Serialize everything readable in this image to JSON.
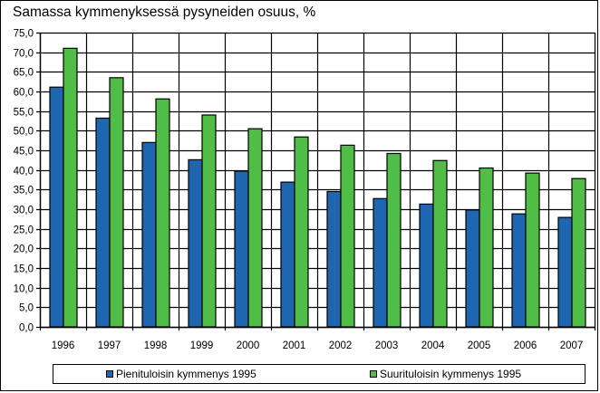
{
  "chart_data": {
    "type": "bar",
    "title": "Samassa kymmenyksessä pysyneiden osuus, %",
    "xlabel": "",
    "ylabel": "",
    "categories": [
      "1996",
      "1997",
      "1998",
      "1999",
      "2000",
      "2001",
      "2002",
      "2003",
      "2004",
      "2005",
      "2006",
      "2007"
    ],
    "series": [
      {
        "name": "Pienituloisin kymmenys 1995",
        "color": "#1F66B0",
        "values": [
          61.1,
          53.2,
          47.0,
          42.6,
          39.7,
          36.9,
          34.5,
          32.7,
          31.3,
          29.8,
          28.8,
          27.9
        ]
      },
      {
        "name": "Suurituloisin kymmenys 1995",
        "color": "#50BE46",
        "values": [
          71.0,
          63.5,
          58.1,
          54.0,
          50.5,
          48.4,
          46.3,
          44.2,
          42.4,
          40.5,
          39.2,
          37.8
        ]
      }
    ],
    "ylim": [
      0,
      75
    ],
    "ytick_step": 5,
    "ytick_labels": [
      "0,0",
      "5,0",
      "10,0",
      "15,0",
      "20,0",
      "25,0",
      "30,0",
      "35,0",
      "40,0",
      "45,0",
      "50,0",
      "55,0",
      "60,0",
      "65,0",
      "70,0",
      "75,0"
    ],
    "grid": true,
    "legend_position": "bottom"
  },
  "legend": {
    "items": [
      {
        "label": "Pienituloisin kymmenys 1995",
        "color": "#1F66B0"
      },
      {
        "label": "Suurituloisin kymmenys 1995",
        "color": "#50BE46"
      }
    ]
  }
}
